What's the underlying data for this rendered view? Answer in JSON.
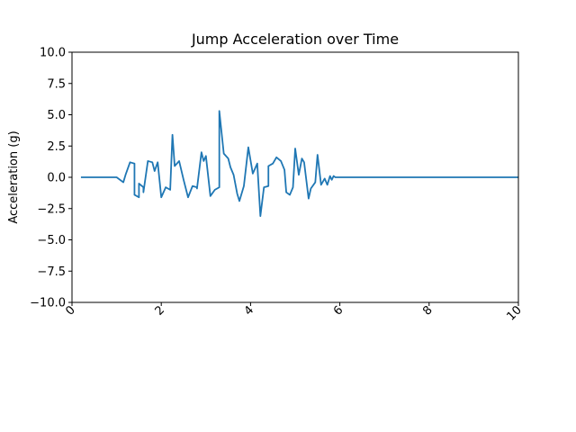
{
  "chart_data": {
    "type": "line",
    "title": "Jump Acceleration over Time",
    "xlabel": "",
    "ylabel": "Acceleration (g)",
    "xlim": [
      0,
      10
    ],
    "ylim": [
      -10,
      10
    ],
    "xticks": [
      0,
      2,
      4,
      6,
      8,
      10
    ],
    "yticks": [
      -10.0,
      -7.5,
      -5.0,
      -2.5,
      0.0,
      2.5,
      5.0,
      7.5,
      10.0
    ],
    "ytick_labels": [
      "−10.0",
      "−7.5",
      "−5.0",
      "−2.5",
      "0.0",
      "2.5",
      "5.0",
      "7.5",
      "10.0"
    ],
    "xtick_labels": [
      "0",
      "2",
      "4",
      "6",
      "8",
      "10"
    ],
    "grid": false,
    "line_color": "#1f77b4",
    "series": [
      {
        "x": [
          0.2,
          0.4,
          0.6,
          0.8,
          1.0,
          1.15,
          1.2,
          1.3,
          1.4,
          1.4,
          1.5,
          1.5,
          1.6,
          1.6,
          1.7,
          1.8,
          1.85,
          1.92,
          2.0,
          2.1,
          2.2,
          2.25,
          2.3,
          2.4,
          2.5,
          2.6,
          2.7,
          2.8,
          2.8,
          2.9,
          2.95,
          3.0,
          3.1,
          3.2,
          3.3,
          3.3,
          3.4,
          3.5,
          3.55,
          3.62,
          3.7,
          3.75,
          3.85,
          3.95,
          4.05,
          4.15,
          4.22,
          4.3,
          4.4,
          4.4,
          4.5,
          4.58,
          4.68,
          4.76,
          4.8,
          4.88,
          4.95,
          5.0,
          5.08,
          5.15,
          5.2,
          5.3,
          5.35,
          5.45,
          5.5,
          5.58,
          5.66,
          5.72,
          5.78,
          5.82,
          5.86,
          5.9,
          6.0,
          6.2,
          6.5,
          7.0,
          7.5,
          8.0,
          8.5,
          9.0,
          9.5,
          10.0
        ],
        "y": [
          0.0,
          0.0,
          0.0,
          0.0,
          0.0,
          -0.4,
          0.2,
          1.2,
          1.1,
          -1.4,
          -1.6,
          -0.5,
          -0.8,
          -1.2,
          1.3,
          1.2,
          0.5,
          1.2,
          -1.6,
          -0.8,
          -1.0,
          3.4,
          0.9,
          1.3,
          -0.2,
          -1.6,
          -0.7,
          -0.8,
          -0.9,
          2.0,
          1.3,
          1.7,
          -1.5,
          -1.0,
          -0.8,
          5.3,
          1.9,
          1.5,
          0.8,
          0.2,
          -1.3,
          -1.9,
          -0.7,
          2.4,
          0.3,
          1.1,
          -3.1,
          -0.8,
          -0.7,
          0.9,
          1.1,
          1.6,
          1.3,
          0.6,
          -1.2,
          -1.4,
          -0.8,
          2.3,
          0.2,
          1.5,
          1.2,
          -1.7,
          -0.9,
          -0.4,
          1.8,
          -0.6,
          -0.1,
          -0.6,
          0.1,
          -0.2,
          0.1,
          0.0,
          0.0,
          0.0,
          0.0,
          0.0,
          0.0,
          0.0,
          0.0,
          0.0,
          0.0,
          0.0
        ]
      }
    ]
  }
}
